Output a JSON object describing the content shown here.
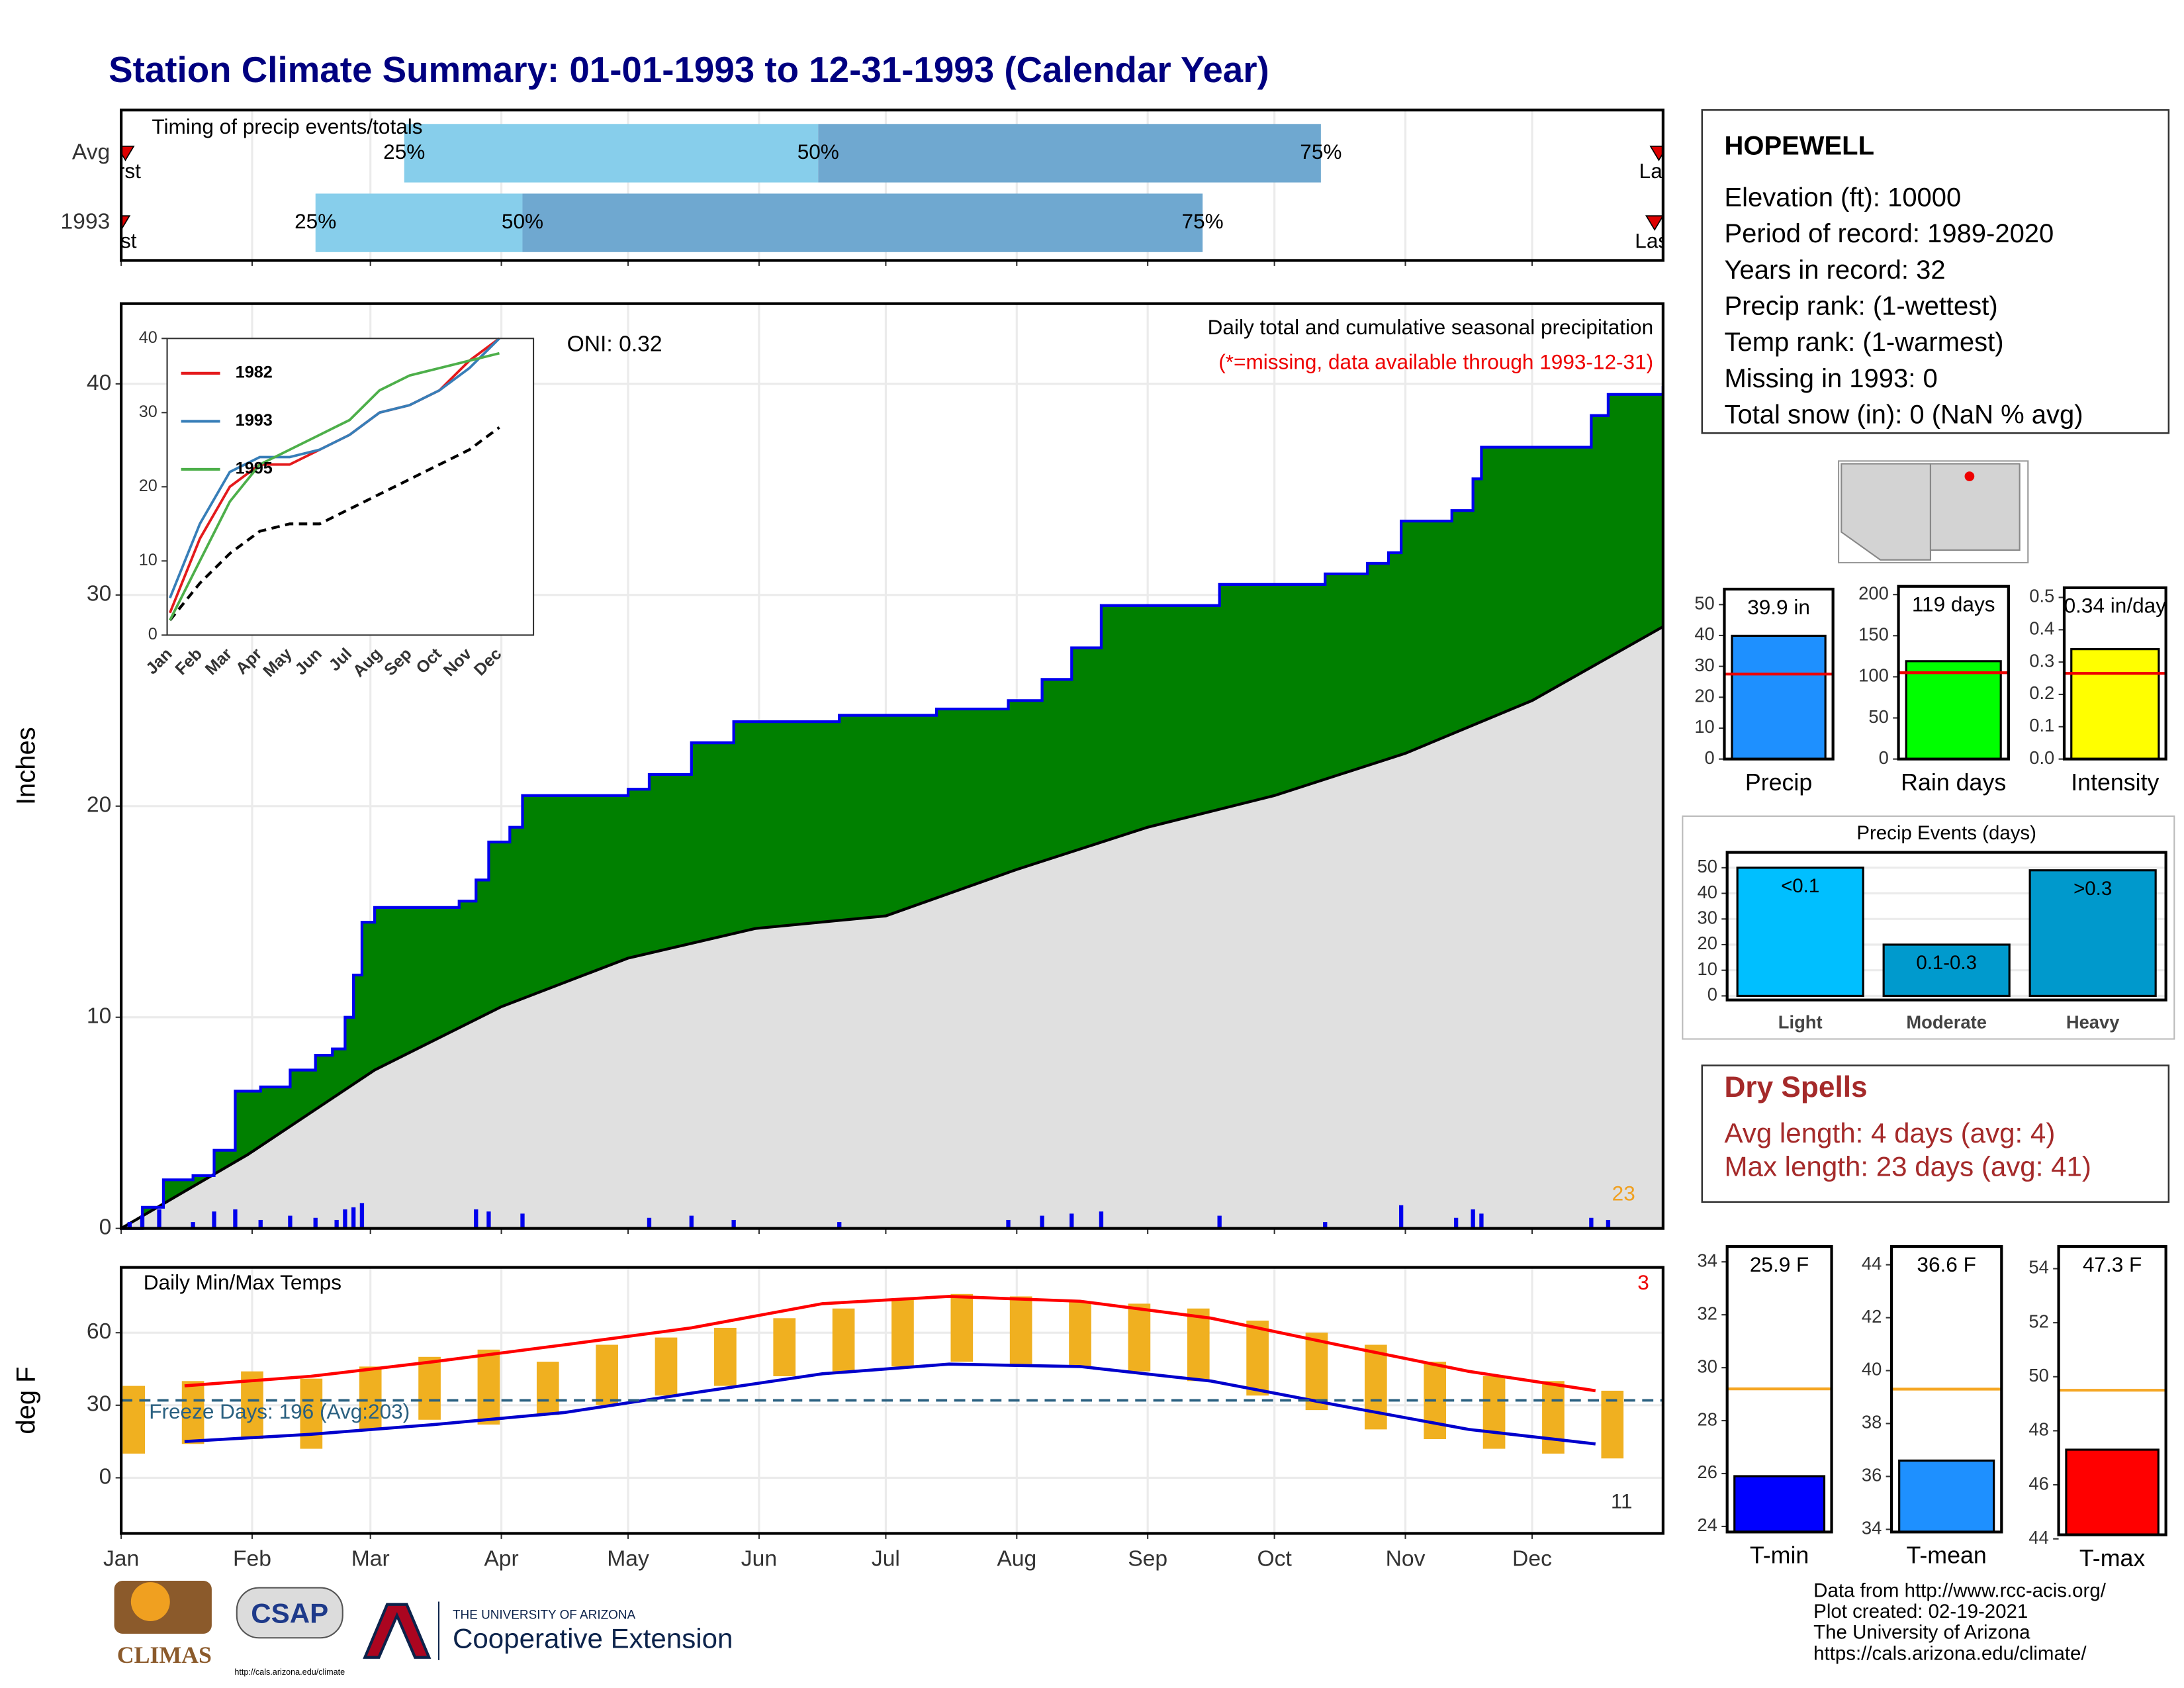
{
  "title": "Station Climate Summary: 01-01-1993 to 12-31-1993 (Calendar Year)",
  "chart_data": [
    {
      "type": "range",
      "title": "Timing of precip events/totals",
      "categories": [
        "Avg",
        "1993"
      ],
      "xlim": [
        0,
        365
      ],
      "first": [
        1,
        0
      ],
      "last": [
        364,
        363
      ],
      "p25": [
        67,
        46
      ],
      "p50": [
        165,
        95
      ],
      "p75": [
        284,
        256
      ],
      "percentile_labels": [
        "25%",
        "50%",
        "75%"
      ],
      "first_label": "First",
      "last_label": "Last",
      "colors": [
        "#87ceeb",
        "#6fa8d0"
      ],
      "marker_color": "#dd0000"
    },
    {
      "type": "area",
      "title": "Daily total and cumulative seasonal precipitation",
      "subtitle": "(*=missing, data available through 1993-12-31)",
      "annotation": "ONI: 0.32",
      "corner_note": "23",
      "ylabel": "Inches",
      "xlim": [
        0,
        365
      ],
      "ylim": [
        0,
        43.8
      ],
      "yticks": [
        0,
        10,
        20,
        30,
        40
      ],
      "grid": true,
      "cumulative": {
        "color": "#008000",
        "line_color": "#0000ee",
        "x": [
          0,
          5,
          10,
          17,
          22,
          27,
          33,
          40,
          46,
          50,
          53,
          55,
          57,
          60,
          80,
          84,
          87,
          92,
          95,
          120,
          125,
          135,
          145,
          160,
          170,
          193,
          210,
          218,
          225,
          232,
          255,
          260,
          280,
          285,
          295,
          300,
          303,
          315,
          320,
          322,
          345,
          348,
          352,
          365
        ],
        "values": [
          0,
          1,
          2.3,
          2.5,
          3.7,
          6.5,
          6.7,
          7.5,
          8.2,
          8.5,
          10,
          12,
          14.5,
          15.2,
          15.5,
          16.5,
          18.3,
          19,
          20.5,
          20.8,
          21.5,
          23,
          24,
          24,
          24.3,
          24.6,
          25,
          26,
          27.5,
          29.5,
          29.5,
          30.5,
          30.5,
          31,
          31.5,
          32,
          33.5,
          34,
          35.5,
          37,
          37,
          38.5,
          39.5,
          39.9
        ]
      },
      "average": {
        "color": "#e0e0e0",
        "line_color": "#000000",
        "x": [
          0,
          30,
          60,
          90,
          120,
          150,
          181,
          212,
          243,
          273,
          304,
          334,
          365
        ],
        "values": [
          0,
          3.5,
          7.5,
          10.5,
          12.8,
          14.2,
          14.8,
          17,
          19,
          20.5,
          22.5,
          25,
          28.5
        ]
      },
      "daily": {
        "color": "#0000ee",
        "x": [
          2,
          5,
          9,
          17,
          22,
          27,
          33,
          40,
          46,
          51,
          53,
          55,
          57,
          84,
          87,
          95,
          125,
          135,
          145,
          170,
          210,
          218,
          225,
          232,
          260,
          285,
          303,
          316,
          320,
          322,
          348,
          352
        ],
        "values": [
          0.3,
          0.6,
          0.9,
          0.3,
          0.8,
          0.9,
          0.4,
          0.6,
          0.5,
          0.4,
          0.9,
          1.0,
          1.2,
          0.9,
          0.8,
          0.7,
          0.5,
          0.6,
          0.4,
          0.3,
          0.4,
          0.6,
          0.7,
          0.8,
          0.6,
          0.3,
          1.1,
          0.5,
          0.9,
          0.7,
          0.5,
          0.4
        ]
      }
    },
    {
      "type": "line",
      "categories": [
        "Jan",
        "Feb",
        "Mar",
        "Apr",
        "May",
        "Jun",
        "Jul",
        "Aug",
        "Sep",
        "Oct",
        "Nov",
        "Dec"
      ],
      "ylim": [
        0,
        40
      ],
      "yticks": [
        0,
        10,
        20,
        30,
        40
      ],
      "series": [
        {
          "name": "1982",
          "color": "#e41a1c",
          "values": [
            3,
            13,
            20,
            23,
            23,
            25,
            27,
            30,
            31,
            33,
            37,
            40
          ]
        },
        {
          "name": "1993",
          "color": "#377eb8",
          "values": [
            5,
            15,
            22,
            24,
            24,
            25,
            27,
            30,
            31,
            33,
            36,
            40
          ]
        },
        {
          "name": "1995",
          "color": "#4daf4a",
          "values": [
            2,
            10,
            18,
            23,
            25,
            27,
            29,
            33,
            35,
            36,
            37,
            38
          ]
        }
      ],
      "average": {
        "color": "#000000",
        "values": [
          2,
          7,
          11,
          14,
          15,
          15,
          17,
          19,
          21,
          23,
          25,
          28
        ]
      }
    },
    {
      "type": "range_bar",
      "title": "Daily Min/Max Temps",
      "annotation": "Freeze Days: 196 (Avg:203)",
      "note_high": "3",
      "note_low": "11",
      "ylabel": "deg F",
      "xlim": [
        0,
        365
      ],
      "xticks": [
        {
          "value": 0,
          "label": "Jan"
        },
        {
          "value": 31,
          "label": "Feb"
        },
        {
          "value": 59,
          "label": "Mar"
        },
        {
          "value": 90,
          "label": "Apr"
        },
        {
          "value": 120,
          "label": "May"
        },
        {
          "value": 151,
          "label": "Jun"
        },
        {
          "value": 181,
          "label": "Jul"
        },
        {
          "value": 212,
          "label": "Aug"
        },
        {
          "value": 243,
          "label": "Sep"
        },
        {
          "value": 273,
          "label": "Oct"
        },
        {
          "value": 304,
          "label": "Nov"
        },
        {
          "value": 334,
          "label": "Dec"
        }
      ],
      "ylim": [
        -23,
        87
      ],
      "yticks": [
        0,
        30,
        60
      ],
      "grid": true,
      "freeze": 32,
      "freeze_color": "#2a6080",
      "bars": {
        "color": "#f0b020",
        "x": [
          3,
          17,
          31,
          45,
          59,
          73,
          87,
          101,
          115,
          129,
          143,
          157,
          171,
          185,
          199,
          213,
          227,
          241,
          255,
          269,
          283,
          297,
          311,
          325,
          339,
          353
        ],
        "low": [
          10,
          14,
          16,
          12,
          20,
          24,
          22,
          26,
          30,
          34,
          38,
          42,
          44,
          46,
          48,
          47,
          46,
          44,
          40,
          34,
          28,
          20,
          16,
          12,
          10,
          8
        ],
        "high": [
          38,
          40,
          44,
          41,
          46,
          50,
          53,
          48,
          55,
          58,
          62,
          66,
          70,
          74,
          76,
          75,
          73,
          72,
          70,
          65,
          60,
          55,
          48,
          42,
          40,
          36
        ]
      },
      "series": [
        {
          "color": "#ff0000",
          "x": [
            15,
            45,
            74,
            105,
            135,
            166,
            196,
            227,
            258,
            288,
            319,
            349
          ],
          "values": [
            38,
            42,
            48,
            55,
            62,
            72,
            75,
            73,
            66,
            55,
            44,
            36
          ]
        },
        {
          "color": "#0000cc",
          "x": [
            15,
            45,
            74,
            105,
            135,
            166,
            196,
            227,
            258,
            288,
            319,
            349
          ],
          "values": [
            15,
            18,
            22,
            27,
            35,
            43,
            47,
            46,
            40,
            30,
            20,
            14
          ]
        }
      ]
    },
    {
      "type": "bar",
      "categories": [
        "Precip"
      ],
      "values": [
        39.9
      ],
      "value_labels": [
        "39.9 in"
      ],
      "color": "#1e90ff",
      "average": 27.5,
      "average_color": "#ee0000",
      "ylim": [
        0,
        55
      ],
      "yticks": [
        0,
        10,
        20,
        30,
        40,
        50
      ]
    },
    {
      "type": "bar",
      "categories": [
        "Rain days"
      ],
      "values": [
        119
      ],
      "value_labels": [
        "119 days"
      ],
      "color": "#00ff00",
      "average": 105,
      "average_color": "#ee0000",
      "ylim": [
        0,
        210
      ],
      "yticks": [
        0,
        50,
        100,
        150,
        200
      ]
    },
    {
      "type": "bar",
      "categories": [
        "Intensity"
      ],
      "values": [
        0.34
      ],
      "value_labels": [
        "0.34 in/day"
      ],
      "color": "#ffff00",
      "average": 0.265,
      "average_color": "#ee0000",
      "ylim": [
        0,
        0.53
      ],
      "yticks": [
        {
          "value": 0,
          "label": "0.0"
        },
        0.1,
        0.2,
        0.3,
        0.4,
        0.5
      ]
    },
    {
      "type": "bar",
      "title": "Precip Events (days)",
      "categories": [
        "Light",
        "Moderate",
        "Heavy"
      ],
      "values": [
        50,
        20,
        49
      ],
      "bar_labels": [
        "<0.1",
        "0.1-0.3",
        ">0.3"
      ],
      "colors": [
        "#00bfff",
        "#009acd",
        "#0099cc"
      ],
      "ylim": [
        -1.6,
        56
      ],
      "yticks": [
        0,
        10,
        20,
        30,
        40,
        50
      ]
    },
    {
      "type": "bar",
      "categories": [
        "T-min"
      ],
      "values": [
        25.9
      ],
      "value_labels": [
        "25.9 F"
      ],
      "color": "#0000ff",
      "average": 29.2,
      "average_color": "#f5a623",
      "ylim": [
        23.79,
        34.58
      ],
      "yticks": [
        24,
        26,
        28,
        30,
        32,
        34
      ]
    },
    {
      "type": "bar",
      "categories": [
        "T-mean"
      ],
      "values": [
        36.6
      ],
      "value_labels": [
        "36.6 F"
      ],
      "color": "#1e90ff",
      "average": 39.3,
      "average_color": "#f5a623",
      "ylim": [
        33.9,
        44.69
      ],
      "yticks": [
        34,
        36,
        38,
        40,
        42,
        44
      ]
    },
    {
      "type": "bar",
      "categories": [
        "T-max"
      ],
      "values": [
        47.3
      ],
      "value_labels": [
        "47.3 F"
      ],
      "color": "#ff0000",
      "average": 49.5,
      "average_color": "#f5a623",
      "ylim": [
        44.15,
        54.82
      ],
      "yticks": [
        44,
        46,
        48,
        50,
        52,
        54
      ]
    }
  ],
  "station": {
    "name": "HOPEWELL",
    "lines": [
      "Elevation (ft): 10000",
      "Period of record: 1989-2020",
      "Years in record: 32",
      "Precip rank:  (1-wettest)",
      "Temp rank:  (1-warmest)",
      "Missing in 1993: 0",
      "Total snow (in): 0 (NaN % avg)"
    ]
  },
  "dry_spells": {
    "title": "Dry Spells",
    "lines": [
      "Avg length: 4 days (avg: 4)",
      "Max length: 23 days (avg: 41)"
    ]
  },
  "footer": [
    "Data from http://www.rcc-acis.org/",
    "Plot created: 02-19-2021",
    "The University of Arizona",
    "https://cals.arizona.edu/climate/"
  ],
  "logos": {
    "climas": "CLIMAS",
    "csap": "CSAP",
    "csap_url": "http://cals.arizona.edu/climate",
    "university": "THE UNIVERSITY OF ARIZONA",
    "extension": "Cooperative Extension"
  }
}
